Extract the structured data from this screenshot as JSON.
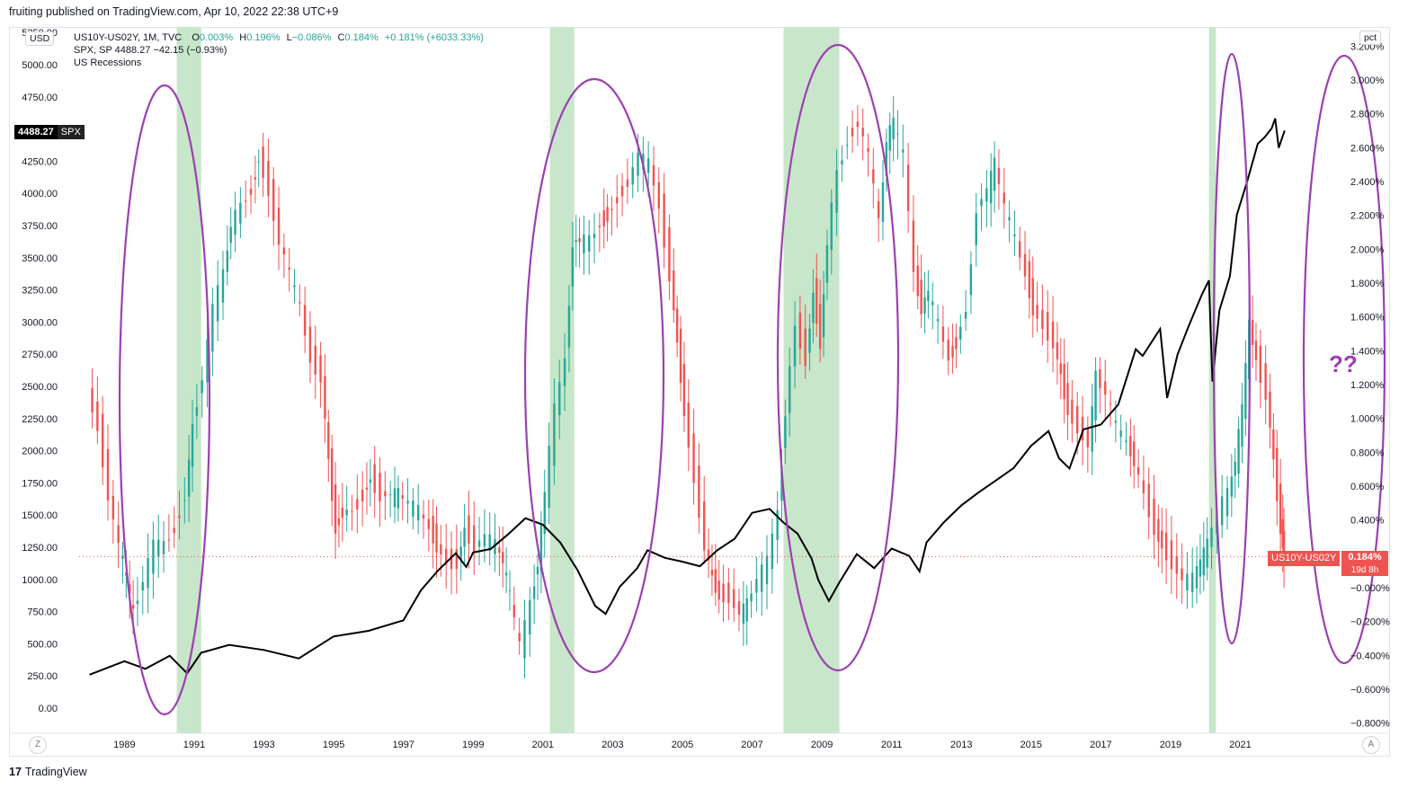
{
  "header": {
    "publisher": "fruiting published on TradingView.com, Apr 10, 2022 22:38 UTC+9"
  },
  "legend": {
    "main_symbol": "US10Y-US02Y, 1M, TVC",
    "o_label": "O",
    "o_value": "0.003%",
    "h_label": "H",
    "h_value": "0.196%",
    "l_label": "L",
    "l_value": "−0.086%",
    "c_label": "C",
    "c_value": "0.184%",
    "change": "+0.181% (+6033.33%)",
    "overlay": "SPX, SP  4488.27  −42.15 (−0.93%)",
    "recessions": "US Recessions"
  },
  "left_axis": {
    "unit": "USD",
    "labels": [
      "5250.00",
      "5000.00",
      "4750.00",
      "4250.00",
      "4000.00",
      "3750.00",
      "3500.00",
      "3250.00",
      "3000.00",
      "2750.00",
      "2500.00",
      "2250.00",
      "2000.00",
      "1750.00",
      "1500.00",
      "1250.00",
      "1000.00",
      "750.00",
      "500.00",
      "250.00",
      "0.00"
    ],
    "spx_tag_value": "4488.27",
    "spx_tag_name": "SPX"
  },
  "right_axis": {
    "unit": "pct",
    "labels": [
      "3.200%",
      "3.000%",
      "2.800%",
      "2.600%",
      "2.400%",
      "2.200%",
      "2.000%",
      "1.800%",
      "1.600%",
      "1.400%",
      "1.200%",
      "1.000%",
      "0.800%",
      "0.600%",
      "0.400%",
      "0.200%",
      "−0.000%",
      "−0.200%",
      "−0.400%",
      "−0.600%",
      "−0.800%"
    ],
    "last_tag_name": "US10Y-US02Y",
    "last_tag_value": "0.184%",
    "last_tag_countdown": "19d 8h"
  },
  "x_axis": {
    "labels": [
      "1989",
      "1991",
      "1993",
      "1995",
      "1997",
      "1999",
      "2001",
      "2003",
      "2005",
      "2007",
      "2009",
      "2011",
      "2013",
      "2015",
      "2017",
      "2019",
      "2021"
    ]
  },
  "corner": {
    "left_button": "Z",
    "right_button": "A"
  },
  "annotation": {
    "text": "??"
  },
  "footer": {
    "logo": "17",
    "brand": "TradingView"
  },
  "colors": {
    "up": "#26a69a",
    "down": "#ef5350",
    "recession": "#c8e6c9",
    "ellipse": "#9c3fb0",
    "spx": "#000000",
    "last_price_bg": "#ef5350"
  },
  "chart_data": {
    "type": "candlestick",
    "title": "US10Y-US02Y, 1M, TVC with SPX overlay and US Recessions",
    "x_range": [
      1987.7,
      2023.9
    ],
    "y_left_range": [
      0,
      5250
    ],
    "y_right_range": [
      -0.8,
      3.2
    ],
    "recessions": [
      [
        1990.5,
        1991.2
      ],
      [
        2001.2,
        2001.9
      ],
      [
        2007.9,
        2009.5
      ],
      [
        2020.1,
        2020.3
      ]
    ],
    "yield_spread_series": {
      "name": "US10Y-US02Y",
      "unit": "%",
      "points": [
        [
          1988.0,
          1.15
        ],
        [
          1988.3,
          0.95
        ],
        [
          1988.6,
          0.55
        ],
        [
          1988.9,
          0.25
        ],
        [
          1989.1,
          0.05
        ],
        [
          1989.3,
          -0.15
        ],
        [
          1989.6,
          0.05
        ],
        [
          1989.9,
          0.25
        ],
        [
          1990.2,
          0.25
        ],
        [
          1990.5,
          0.35
        ],
        [
          1990.8,
          0.55
        ],
        [
          1991.0,
          0.95
        ],
        [
          1991.3,
          1.25
        ],
        [
          1991.6,
          1.65
        ],
        [
          1991.9,
          1.85
        ],
        [
          1992.1,
          2.15
        ],
        [
          1992.4,
          2.25
        ],
        [
          1992.7,
          2.35
        ],
        [
          1992.9,
          2.55
        ],
        [
          1993.2,
          2.35
        ],
        [
          1993.5,
          2.05
        ],
        [
          1993.8,
          1.85
        ],
        [
          1994.1,
          1.65
        ],
        [
          1994.4,
          1.35
        ],
        [
          1994.7,
          1.25
        ],
        [
          1994.9,
          0.75
        ],
        [
          1995.1,
          0.35
        ],
        [
          1995.3,
          0.45
        ],
        [
          1995.6,
          0.45
        ],
        [
          1995.9,
          0.55
        ],
        [
          1996.1,
          0.65
        ],
        [
          1996.4,
          0.55
        ],
        [
          1996.7,
          0.55
        ],
        [
          1996.9,
          0.55
        ],
        [
          1997.2,
          0.5
        ],
        [
          1997.5,
          0.45
        ],
        [
          1997.8,
          0.35
        ],
        [
          1998.0,
          0.25
        ],
        [
          1998.3,
          0.15
        ],
        [
          1998.6,
          0.15
        ],
        [
          1998.8,
          0.35
        ],
        [
          1999.1,
          0.25
        ],
        [
          1999.4,
          0.3
        ],
        [
          1999.7,
          0.25
        ],
        [
          1999.9,
          0.15
        ],
        [
          2000.1,
          -0.05
        ],
        [
          2000.4,
          -0.35
        ],
        [
          2000.7,
          -0.1
        ],
        [
          2000.9,
          0.15
        ],
        [
          2001.1,
          0.55
        ],
        [
          2001.4,
          1.05
        ],
        [
          2001.7,
          1.35
        ],
        [
          2001.9,
          2.05
        ],
        [
          2002.1,
          2.05
        ],
        [
          2002.4,
          2.05
        ],
        [
          2002.7,
          2.15
        ],
        [
          2002.9,
          2.2
        ],
        [
          2003.2,
          2.3
        ],
        [
          2003.5,
          2.4
        ],
        [
          2003.8,
          2.55
        ],
        [
          2004.1,
          2.5
        ],
        [
          2004.4,
          2.25
        ],
        [
          2004.7,
          1.85
        ],
        [
          2004.9,
          1.45
        ],
        [
          2005.1,
          1.05
        ],
        [
          2005.4,
          0.65
        ],
        [
          2005.7,
          0.25
        ],
        [
          2005.9,
          0.05
        ],
        [
          2006.1,
          -0.05
        ],
        [
          2006.4,
          -0.05
        ],
        [
          2006.7,
          -0.15
        ],
        [
          2006.9,
          -0.1
        ],
        [
          2007.2,
          0.05
        ],
        [
          2007.5,
          0.15
        ],
        [
          2007.8,
          0.45
        ],
        [
          2008.0,
          1.05
        ],
        [
          2008.3,
          1.55
        ],
        [
          2008.6,
          1.35
        ],
        [
          2008.8,
          1.75
        ],
        [
          2009.0,
          1.45
        ],
        [
          2009.2,
          2.05
        ],
        [
          2009.5,
          2.45
        ],
        [
          2009.8,
          2.65
        ],
        [
          2010.1,
          2.75
        ],
        [
          2010.4,
          2.55
        ],
        [
          2010.7,
          2.15
        ],
        [
          2010.9,
          2.65
        ],
        [
          2011.1,
          2.75
        ],
        [
          2011.4,
          2.55
        ],
        [
          2011.7,
          1.85
        ],
        [
          2011.9,
          1.65
        ],
        [
          2012.1,
          1.75
        ],
        [
          2012.4,
          1.55
        ],
        [
          2012.7,
          1.35
        ],
        [
          2012.9,
          1.45
        ],
        [
          2013.2,
          1.65
        ],
        [
          2013.5,
          2.25
        ],
        [
          2013.8,
          2.35
        ],
        [
          2014.0,
          2.5
        ],
        [
          2014.3,
          2.25
        ],
        [
          2014.6,
          2.05
        ],
        [
          2014.9,
          1.85
        ],
        [
          2015.1,
          1.65
        ],
        [
          2015.4,
          1.55
        ],
        [
          2015.7,
          1.45
        ],
        [
          2015.9,
          1.25
        ],
        [
          2016.1,
          1.05
        ],
        [
          2016.4,
          0.95
        ],
        [
          2016.7,
          0.85
        ],
        [
          2016.9,
          1.25
        ],
        [
          2017.2,
          1.15
        ],
        [
          2017.5,
          0.95
        ],
        [
          2017.8,
          0.85
        ],
        [
          2018.0,
          0.75
        ],
        [
          2018.3,
          0.55
        ],
        [
          2018.6,
          0.35
        ],
        [
          2018.8,
          0.25
        ],
        [
          2019.1,
          0.15
        ],
        [
          2019.4,
          0.05
        ],
        [
          2019.7,
          0.05
        ],
        [
          2019.9,
          0.15
        ],
        [
          2020.1,
          0.25
        ],
        [
          2020.4,
          0.45
        ],
        [
          2020.7,
          0.55
        ],
        [
          2020.9,
          0.75
        ],
        [
          2021.1,
          1.05
        ],
        [
          2021.3,
          1.55
        ],
        [
          2021.5,
          1.35
        ],
        [
          2021.8,
          1.15
        ],
        [
          2022.0,
          0.75
        ],
        [
          2022.2,
          0.35
        ],
        [
          2022.27,
          0.184
        ]
      ]
    },
    "spx_series": {
      "name": "SPX",
      "unit": "USD",
      "points": [
        [
          1988.0,
          260
        ],
        [
          1989.0,
          290
        ],
        [
          1989.6,
          340
        ],
        [
          1990.3,
          340
        ],
        [
          1990.8,
          300
        ],
        [
          1991.2,
          380
        ],
        [
          1992.0,
          410
        ],
        [
          1993.0,
          450
        ],
        [
          1994.0,
          470
        ],
        [
          1995.0,
          470
        ],
        [
          1996.0,
          610
        ],
        [
          1997.0,
          760
        ],
        [
          1997.5,
          900
        ],
        [
          1998.0,
          980
        ],
        [
          1998.5,
          1130
        ],
        [
          1998.8,
          1000
        ],
        [
          1999.0,
          1230
        ],
        [
          1999.5,
          1330
        ],
        [
          2000.0,
          1420
        ],
        [
          2000.5,
          1450
        ],
        [
          2001.0,
          1330
        ],
        [
          2001.5,
          1220
        ],
        [
          2002.0,
          1100
        ],
        [
          2002.5,
          890
        ],
        [
          2002.8,
          800
        ],
        [
          2003.2,
          860
        ],
        [
          2003.7,
          1000
        ],
        [
          2004.0,
          1130
        ],
        [
          2004.5,
          1110
        ],
        [
          2005.0,
          1180
        ],
        [
          2005.5,
          1200
        ],
        [
          2006.0,
          1280
        ],
        [
          2006.5,
          1270
        ],
        [
          2007.0,
          1420
        ],
        [
          2007.5,
          1500
        ],
        [
          2007.9,
          1470
        ],
        [
          2008.3,
          1350
        ],
        [
          2008.7,
          1150
        ],
        [
          2008.9,
          900
        ],
        [
          2009.2,
          740
        ],
        [
          2009.5,
          920
        ],
        [
          2010.0,
          1100
        ],
        [
          2010.5,
          1050
        ],
        [
          2011.0,
          1300
        ],
        [
          2011.5,
          1280
        ],
        [
          2011.8,
          1150
        ],
        [
          2012.0,
          1320
        ],
        [
          2012.5,
          1380
        ],
        [
          2013.0,
          1480
        ],
        [
          2013.5,
          1650
        ],
        [
          2014.0,
          1840
        ],
        [
          2014.5,
          1960
        ],
        [
          2015.0,
          2060
        ],
        [
          2015.5,
          2080
        ],
        [
          2015.8,
          1920
        ],
        [
          2016.1,
          1900
        ],
        [
          2016.5,
          2150
        ],
        [
          2017.0,
          2280
        ],
        [
          2017.5,
          2450
        ],
        [
          2018.0,
          2800
        ],
        [
          2018.2,
          2640
        ],
        [
          2018.7,
          2900
        ],
        [
          2018.9,
          2500
        ],
        [
          2019.2,
          2800
        ],
        [
          2019.5,
          2950
        ],
        [
          2019.9,
          3200
        ],
        [
          2020.1,
          3230
        ],
        [
          2020.2,
          2580
        ],
        [
          2020.4,
          3000
        ],
        [
          2020.7,
          3300
        ],
        [
          2020.9,
          3760
        ],
        [
          2021.2,
          4000
        ],
        [
          2021.5,
          4300
        ],
        [
          2021.7,
          4400
        ],
        [
          2021.9,
          4600
        ],
        [
          2022.0,
          4500
        ],
        [
          2022.1,
          4370
        ],
        [
          2022.27,
          4488
        ]
      ]
    },
    "ellipses_note": "Five hand-drawn ellipses around yield-curve inversions before recessions"
  }
}
